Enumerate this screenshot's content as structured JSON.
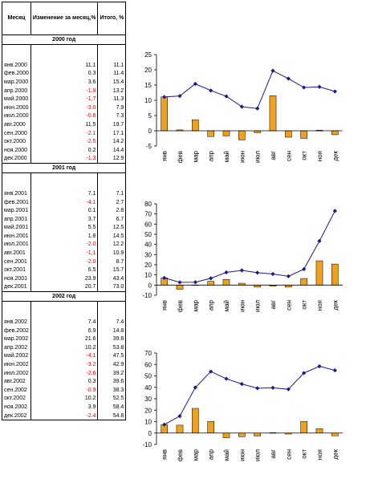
{
  "table": {
    "headers": {
      "month": "Месяц",
      "change": "Изменение за месяц,%",
      "total": "Итого, %"
    },
    "years": [
      {
        "label": "2000 год",
        "rows": [
          [
            "янв.2000",
            "11.1",
            "11.1"
          ],
          [
            "фев.2000",
            "0.3",
            "11.4"
          ],
          [
            "мар.2000",
            "3.6",
            "15.4"
          ],
          [
            "апр.2000",
            "-1.9",
            "13.2"
          ],
          [
            "май.2000",
            "-1.7",
            "11.3"
          ],
          [
            "июн.2000",
            "-3.0",
            "7.9"
          ],
          [
            "июл.2000",
            "-0.6",
            "7.3"
          ],
          [
            "авг.2000",
            "11.5",
            "19.7"
          ],
          [
            "сен.2000",
            "-2.1",
            "17.1"
          ],
          [
            "окт.2000",
            "-2.5",
            "14.2"
          ],
          [
            "ноя.2000",
            "0.2",
            "14.4"
          ],
          [
            "дек.2000",
            "-1.3",
            "12.9"
          ]
        ]
      },
      {
        "label": "2001 год",
        "rows": [
          [
            "янв.2001",
            "7.1",
            "7.1"
          ],
          [
            "фев.2001",
            "-4.1",
            "2.7"
          ],
          [
            "мар.2001",
            "0.1",
            "2.8"
          ],
          [
            "апр.2001",
            "3.7",
            "6.7"
          ],
          [
            "май.2001",
            "5.5",
            "12.5"
          ],
          [
            "июн.2001",
            "1.8",
            "14.5"
          ],
          [
            "июл.2001",
            "-2.0",
            "12.2"
          ],
          [
            "авг.2001",
            "-1.1",
            "10.9"
          ],
          [
            "сен.2001",
            "-2.0",
            "8.7"
          ],
          [
            "окт.2001",
            "6.5",
            "15.7"
          ],
          [
            "ноя.2001",
            "23.9",
            "43.4"
          ],
          [
            "дек.2001",
            "20.7",
            "73.0"
          ]
        ]
      },
      {
        "label": "2002 год",
        "rows": [
          [
            "янв.2002",
            "7.4",
            "7.4"
          ],
          [
            "фев.2002",
            "6.9",
            "14.8"
          ],
          [
            "мар.2002",
            "21.6",
            "39.8"
          ],
          [
            "апр.2002",
            "10.2",
            "53.8"
          ],
          [
            "май.2002",
            "-4.1",
            "47.5"
          ],
          [
            "июн.2002",
            "-3.2",
            "42.9"
          ],
          [
            "июл.2002",
            "-2.6",
            "39.2"
          ],
          [
            "авг.2002",
            "0.3",
            "39.6"
          ],
          [
            "сен.2002",
            "-0.9",
            "38.3"
          ],
          [
            "окт.2002",
            "10.2",
            "52.5"
          ],
          [
            "ноя.2002",
            "3.9",
            "58.4"
          ],
          [
            "дек.2002",
            "-2.4",
            "54.8"
          ]
        ]
      }
    ]
  },
  "chart_data": [
    {
      "type": "bar",
      "categories": [
        "янв",
        "фев",
        "мар",
        "апр",
        "май",
        "июн",
        "июл",
        "авг",
        "сен",
        "окт",
        "ноя",
        "дек"
      ],
      "series": [
        {
          "kind": "bar",
          "values": [
            11.1,
            0.3,
            3.6,
            -1.9,
            -1.7,
            -3.0,
            -0.6,
            11.5,
            -2.1,
            -2.5,
            0.2,
            -1.3
          ]
        },
        {
          "kind": "line",
          "values": [
            11.1,
            11.4,
            15.4,
            13.2,
            11.3,
            7.9,
            7.3,
            19.7,
            17.1,
            14.2,
            14.4,
            12.9
          ]
        }
      ],
      "ylim": [
        -5,
        25
      ],
      "yticks": [
        -5,
        0,
        5,
        10,
        15,
        20,
        25
      ]
    },
    {
      "type": "bar",
      "categories": [
        "янв",
        "фев",
        "мар",
        "апр",
        "май",
        "июн",
        "июл",
        "авг",
        "сен",
        "окт",
        "ноя",
        "дек"
      ],
      "series": [
        {
          "kind": "bar",
          "values": [
            7.1,
            -4.1,
            0.1,
            3.7,
            5.5,
            1.8,
            -2.0,
            -1.1,
            -2.0,
            6.5,
            23.9,
            20.7
          ]
        },
        {
          "kind": "line",
          "values": [
            7.1,
            2.7,
            2.8,
            6.7,
            12.5,
            14.5,
            12.2,
            10.9,
            8.7,
            15.7,
            43.4,
            73.0
          ]
        }
      ],
      "ylim": [
        -10,
        80
      ],
      "yticks": [
        -10,
        0,
        10,
        20,
        30,
        40,
        50,
        60,
        70,
        80
      ]
    },
    {
      "type": "bar",
      "categories": [
        "янв",
        "фев",
        "мар",
        "апр",
        "май",
        "июн",
        "июл",
        "авг",
        "сен",
        "окт",
        "ноя",
        "дек"
      ],
      "series": [
        {
          "kind": "bar",
          "values": [
            7.4,
            6.9,
            21.6,
            10.2,
            -4.1,
            -3.2,
            -2.6,
            0.3,
            -0.9,
            10.2,
            3.9,
            -2.4
          ]
        },
        {
          "kind": "line",
          "values": [
            7.4,
            14.8,
            39.8,
            53.8,
            47.5,
            42.9,
            39.2,
            39.6,
            38.3,
            52.5,
            58.4,
            54.8
          ]
        }
      ],
      "ylim": [
        -10,
        70
      ],
      "yticks": [
        -10,
        0,
        10,
        20,
        30,
        40,
        50,
        60,
        70
      ]
    }
  ],
  "colors": {
    "bar": "#f0a020",
    "bar_border": "#000000",
    "line": "#1a1a8c",
    "negative_text": "#e00000"
  }
}
